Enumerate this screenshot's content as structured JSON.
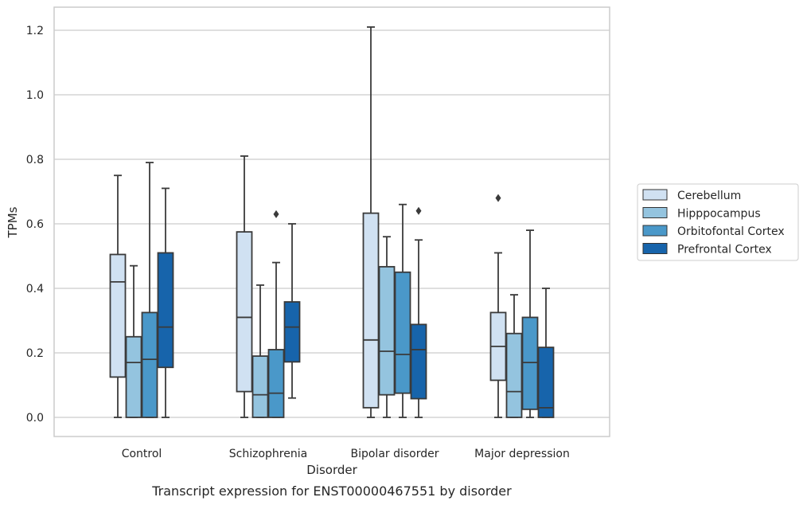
{
  "chart_data": {
    "type": "box",
    "title": "",
    "caption": "Transcript expression for ENST00000467551 by disorder",
    "xlabel": "Disorder",
    "ylabel": "TPMs",
    "ylim": [
      -0.06,
      1.27
    ],
    "yticks": [
      0.0,
      0.2,
      0.4,
      0.6,
      0.8,
      1.0,
      1.2
    ],
    "ytick_labels": [
      "0.0",
      "0.2",
      "0.4",
      "0.6",
      "0.8",
      "1.0",
      "1.2"
    ],
    "grid": "horizontal",
    "legend_position": "right",
    "categories": [
      "Control",
      "Schizophrenia",
      "Bipolar disorder",
      "Major depression"
    ],
    "series": [
      {
        "name": "Cerebellum",
        "color": "#d0e1f2",
        "boxes": [
          {
            "whislo": 0.0,
            "q1": 0.125,
            "med": 0.42,
            "q3": 0.505,
            "whishi": 0.75,
            "fliers": []
          },
          {
            "whislo": 0.0,
            "q1": 0.08,
            "med": 0.31,
            "q3": 0.575,
            "whishi": 0.81,
            "fliers": []
          },
          {
            "whislo": 0.0,
            "q1": 0.03,
            "med": 0.24,
            "q3": 0.633,
            "whishi": 1.21,
            "fliers": []
          },
          {
            "whislo": 0.0,
            "q1": 0.115,
            "med": 0.22,
            "q3": 0.325,
            "whishi": 0.51,
            "fliers": [
              0.68
            ]
          }
        ]
      },
      {
        "name": "Hipppocampus",
        "color": "#94c4df",
        "boxes": [
          {
            "whislo": 0.0,
            "q1": 0.0,
            "med": 0.17,
            "q3": 0.25,
            "whishi": 0.47,
            "fliers": []
          },
          {
            "whislo": 0.0,
            "q1": 0.0,
            "med": 0.07,
            "q3": 0.19,
            "whishi": 0.41,
            "fliers": []
          },
          {
            "whislo": 0.0,
            "q1": 0.07,
            "med": 0.205,
            "q3": 0.467,
            "whishi": 0.56,
            "fliers": []
          },
          {
            "whislo": 0.0,
            "q1": 0.0,
            "med": 0.08,
            "q3": 0.26,
            "whishi": 0.38,
            "fliers": []
          }
        ]
      },
      {
        "name": "Orbitofontal Cortex",
        "color": "#4a98c9",
        "boxes": [
          {
            "whislo": 0.0,
            "q1": 0.0,
            "med": 0.18,
            "q3": 0.325,
            "whishi": 0.79,
            "fliers": []
          },
          {
            "whislo": 0.0,
            "q1": 0.0,
            "med": 0.075,
            "q3": 0.21,
            "whishi": 0.48,
            "fliers": [
              0.63
            ]
          },
          {
            "whislo": 0.0,
            "q1": 0.075,
            "med": 0.195,
            "q3": 0.45,
            "whishi": 0.66,
            "fliers": []
          },
          {
            "whislo": 0.0,
            "q1": 0.025,
            "med": 0.17,
            "q3": 0.31,
            "whishi": 0.58,
            "fliers": []
          }
        ]
      },
      {
        "name": "Prefrontal Cortex",
        "color": "#1764ab",
        "boxes": [
          {
            "whislo": 0.0,
            "q1": 0.155,
            "med": 0.28,
            "q3": 0.51,
            "whishi": 0.71,
            "fliers": []
          },
          {
            "whislo": 0.06,
            "q1": 0.172,
            "med": 0.28,
            "q3": 0.358,
            "whishi": 0.6,
            "fliers": []
          },
          {
            "whislo": 0.0,
            "q1": 0.058,
            "med": 0.21,
            "q3": 0.288,
            "whishi": 0.55,
            "fliers": [
              0.64
            ]
          },
          {
            "whislo": 0.0,
            "q1": 0.0,
            "med": 0.03,
            "q3": 0.217,
            "whishi": 0.4,
            "fliers": []
          }
        ]
      }
    ]
  }
}
